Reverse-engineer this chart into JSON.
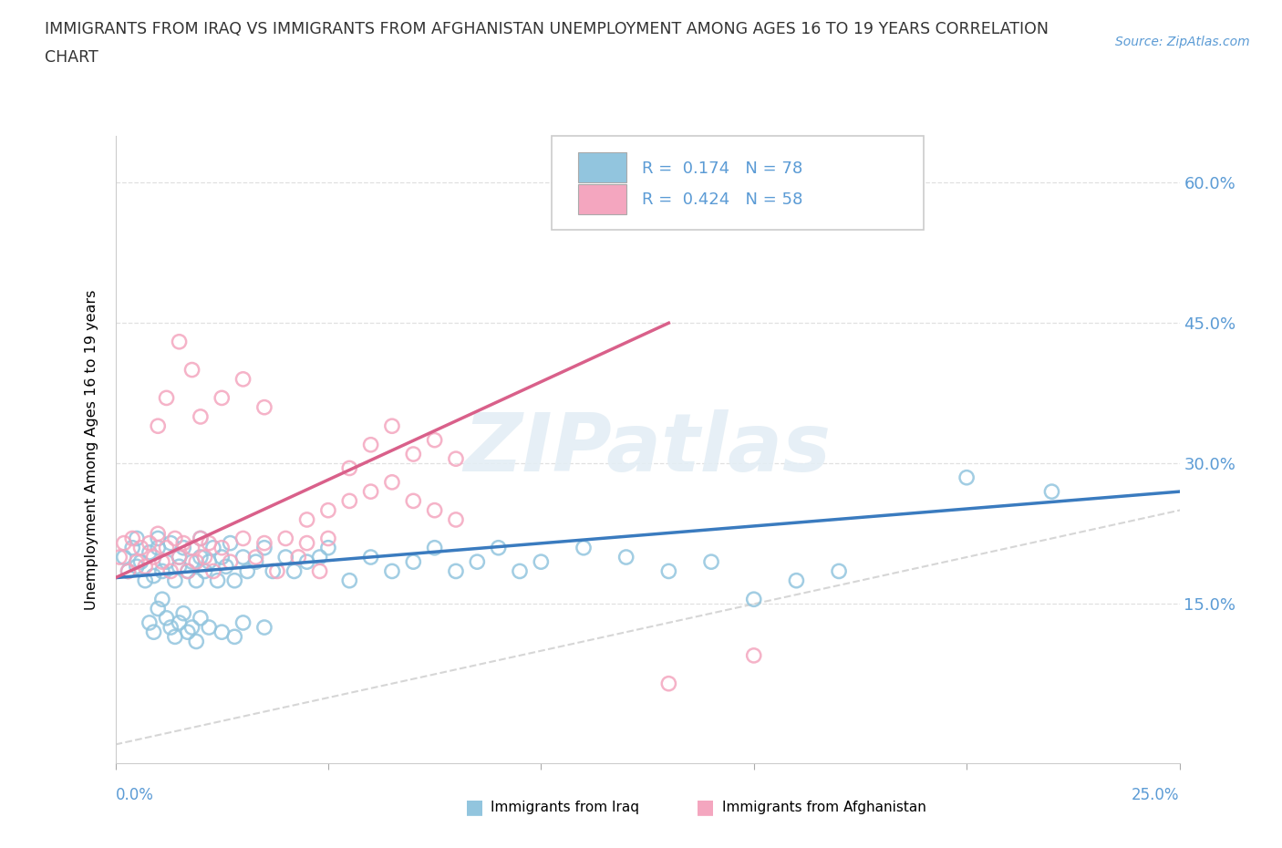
{
  "title_line1": "IMMIGRANTS FROM IRAQ VS IMMIGRANTS FROM AFGHANISTAN UNEMPLOYMENT AMONG AGES 16 TO 19 YEARS CORRELATION",
  "title_line2": "CHART",
  "source": "Source: ZipAtlas.com",
  "ylabel": "Unemployment Among Ages 16 to 19 years",
  "ytick_labels": [
    "15.0%",
    "30.0%",
    "45.0%",
    "60.0%"
  ],
  "ytick_values": [
    0.15,
    0.3,
    0.45,
    0.6
  ],
  "xtick_label_left": "0.0%",
  "xtick_label_right": "25.0%",
  "xlim": [
    0.0,
    0.25
  ],
  "ylim": [
    -0.02,
    0.65
  ],
  "legend_iraq_R": "0.174",
  "legend_iraq_N": "78",
  "legend_afg_R": "0.424",
  "legend_afg_N": "58",
  "color_iraq": "#92c5de",
  "color_afg": "#f4a6bf",
  "color_trendline_iraq": "#3a7bbf",
  "color_trendline_afg": "#d9608a",
  "color_diagonal": "#cccccc",
  "color_axis_labels": "#5b9bd5",
  "color_title": "#333333",
  "watermark_text": "ZIPatlas",
  "iraq_x": [
    0.002,
    0.003,
    0.004,
    0.005,
    0.005,
    0.006,
    0.007,
    0.008,
    0.009,
    0.01,
    0.01,
    0.011,
    0.012,
    0.013,
    0.014,
    0.015,
    0.015,
    0.016,
    0.017,
    0.018,
    0.019,
    0.02,
    0.02,
    0.021,
    0.022,
    0.023,
    0.024,
    0.025,
    0.026,
    0.027,
    0.028,
    0.03,
    0.031,
    0.033,
    0.035,
    0.037,
    0.04,
    0.042,
    0.045,
    0.048,
    0.05,
    0.055,
    0.06,
    0.065,
    0.07,
    0.075,
    0.08,
    0.085,
    0.09,
    0.095,
    0.1,
    0.11,
    0.12,
    0.13,
    0.14,
    0.15,
    0.16,
    0.17,
    0.008,
    0.009,
    0.01,
    0.011,
    0.012,
    0.013,
    0.014,
    0.015,
    0.016,
    0.017,
    0.018,
    0.019,
    0.02,
    0.022,
    0.025,
    0.028,
    0.03,
    0.035,
    0.2,
    0.22
  ],
  "iraq_y": [
    0.2,
    0.185,
    0.21,
    0.19,
    0.22,
    0.195,
    0.175,
    0.205,
    0.18,
    0.22,
    0.21,
    0.185,
    0.195,
    0.215,
    0.175,
    0.2,
    0.19,
    0.21,
    0.185,
    0.195,
    0.175,
    0.2,
    0.22,
    0.185,
    0.195,
    0.21,
    0.175,
    0.2,
    0.19,
    0.215,
    0.175,
    0.2,
    0.185,
    0.195,
    0.21,
    0.185,
    0.2,
    0.185,
    0.195,
    0.2,
    0.21,
    0.175,
    0.2,
    0.185,
    0.195,
    0.21,
    0.185,
    0.195,
    0.21,
    0.185,
    0.195,
    0.21,
    0.2,
    0.185,
    0.195,
    0.155,
    0.175,
    0.185,
    0.13,
    0.12,
    0.145,
    0.155,
    0.135,
    0.125,
    0.115,
    0.13,
    0.14,
    0.12,
    0.125,
    0.11,
    0.135,
    0.125,
    0.12,
    0.115,
    0.13,
    0.125,
    0.285,
    0.27
  ],
  "afg_x": [
    0.001,
    0.002,
    0.003,
    0.004,
    0.005,
    0.006,
    0.007,
    0.008,
    0.009,
    0.01,
    0.011,
    0.012,
    0.013,
    0.014,
    0.015,
    0.016,
    0.017,
    0.018,
    0.019,
    0.02,
    0.021,
    0.022,
    0.023,
    0.025,
    0.027,
    0.03,
    0.033,
    0.035,
    0.038,
    0.04,
    0.043,
    0.045,
    0.048,
    0.05,
    0.055,
    0.06,
    0.065,
    0.07,
    0.075,
    0.08,
    0.045,
    0.05,
    0.055,
    0.06,
    0.065,
    0.07,
    0.075,
    0.08,
    0.01,
    0.012,
    0.015,
    0.018,
    0.02,
    0.025,
    0.03,
    0.035,
    0.13,
    0.15
  ],
  "afg_y": [
    0.2,
    0.215,
    0.185,
    0.22,
    0.195,
    0.21,
    0.19,
    0.215,
    0.2,
    0.225,
    0.195,
    0.21,
    0.185,
    0.22,
    0.2,
    0.215,
    0.185,
    0.21,
    0.195,
    0.22,
    0.2,
    0.215,
    0.185,
    0.21,
    0.195,
    0.22,
    0.2,
    0.215,
    0.185,
    0.22,
    0.2,
    0.215,
    0.185,
    0.22,
    0.295,
    0.32,
    0.34,
    0.31,
    0.325,
    0.305,
    0.24,
    0.25,
    0.26,
    0.27,
    0.28,
    0.26,
    0.25,
    0.24,
    0.34,
    0.37,
    0.43,
    0.4,
    0.35,
    0.37,
    0.39,
    0.36,
    0.065,
    0.095
  ]
}
